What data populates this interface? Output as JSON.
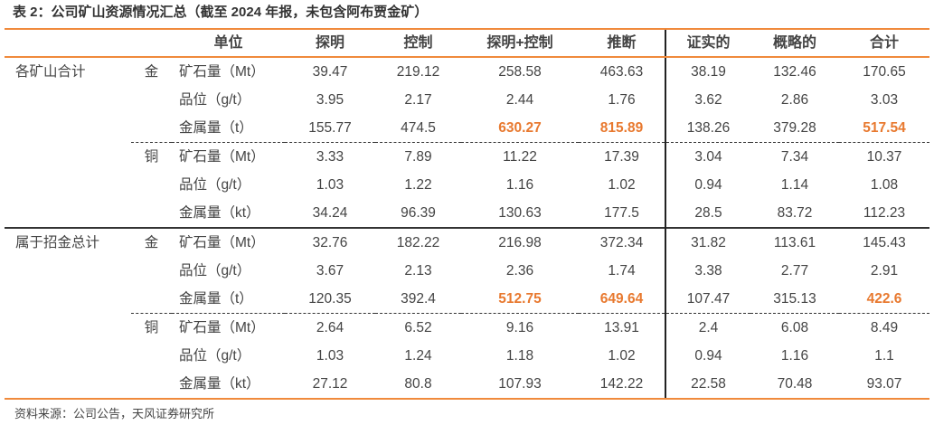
{
  "title": "表 2：公司矿山资源情况汇总（截至 2024 年报，未包含阿布贾金矿）",
  "headers": [
    "单位",
    "探明",
    "控制",
    "探明+控制",
    "推断",
    "证实的",
    "概略的",
    "合计"
  ],
  "accent_color": "#e8792f",
  "groups": [
    {
      "label": "各矿山合计",
      "metals": [
        {
          "metal": "金",
          "rows": [
            {
              "unit": "矿石量（Mt）",
              "values": [
                "39.47",
                "219.12",
                "258.58",
                "463.63",
                "38.19",
                "132.46",
                "170.65"
              ],
              "highlight": []
            },
            {
              "unit": "品位（g/t）",
              "values": [
                "3.95",
                "2.17",
                "2.44",
                "1.76",
                "3.62",
                "2.86",
                "3.03"
              ],
              "highlight": []
            },
            {
              "unit": "金属量（t）",
              "values": [
                "155.77",
                "474.5",
                "630.27",
                "815.89",
                "138.26",
                "379.28",
                "517.54"
              ],
              "highlight": [
                2,
                3,
                6
              ]
            }
          ]
        },
        {
          "metal": "铜",
          "rows": [
            {
              "unit": "矿石量（Mt）",
              "values": [
                "3.33",
                "7.89",
                "11.22",
                "17.39",
                "3.04",
                "7.34",
                "10.37"
              ],
              "highlight": []
            },
            {
              "unit": "品位（g/t）",
              "values": [
                "1.03",
                "1.22",
                "1.16",
                "1.02",
                "0.94",
                "1.14",
                "1.08"
              ],
              "highlight": []
            },
            {
              "unit": "金属量（kt）",
              "values": [
                "34.24",
                "96.39",
                "130.63",
                "177.5",
                "28.5",
                "83.72",
                "112.23"
              ],
              "highlight": []
            }
          ]
        }
      ]
    },
    {
      "label": "属于招金总计",
      "metals": [
        {
          "metal": "金",
          "rows": [
            {
              "unit": "矿石量（Mt）",
              "values": [
                "32.76",
                "182.22",
                "216.98",
                "372.34",
                "31.82",
                "113.61",
                "145.43"
              ],
              "highlight": []
            },
            {
              "unit": "品位（g/t）",
              "values": [
                "3.67",
                "2.13",
                "2.36",
                "1.74",
                "3.38",
                "2.77",
                "2.91"
              ],
              "highlight": []
            },
            {
              "unit": "金属量（t）",
              "values": [
                "120.35",
                "392.4",
                "512.75",
                "649.64",
                "107.47",
                "315.13",
                "422.6"
              ],
              "highlight": [
                2,
                3,
                6
              ]
            }
          ]
        },
        {
          "metal": "铜",
          "rows": [
            {
              "unit": "矿石量（Mt）",
              "values": [
                "2.64",
                "6.52",
                "9.16",
                "13.91",
                "2.4",
                "6.08",
                "8.49"
              ],
              "highlight": []
            },
            {
              "unit": "品位（g/t）",
              "values": [
                "1.03",
                "1.24",
                "1.18",
                "1.02",
                "0.94",
                "1.16",
                "1.1"
              ],
              "highlight": []
            },
            {
              "unit": "金属量（kt）",
              "values": [
                "27.12",
                "80.8",
                "107.93",
                "142.22",
                "22.58",
                "70.48",
                "93.07"
              ],
              "highlight": []
            }
          ]
        }
      ]
    }
  ],
  "source": "资料来源：公司公告，天风证券研究所"
}
